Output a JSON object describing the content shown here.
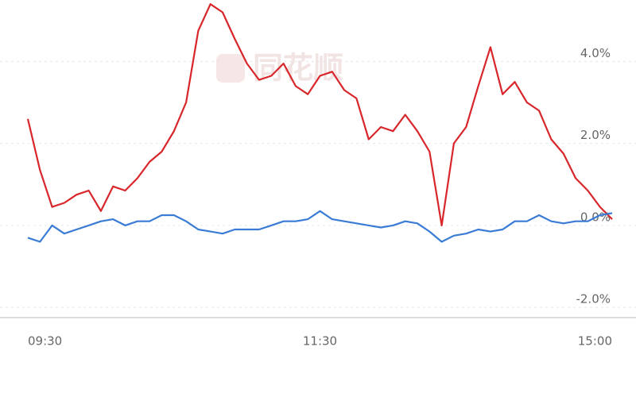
{
  "chart_data": {
    "type": "line",
    "watermark": "同花顺",
    "categories": [
      "09:30",
      null,
      null,
      null,
      null,
      null,
      null,
      null,
      null,
      null,
      null,
      null,
      null,
      null,
      null,
      null,
      null,
      null,
      null,
      null,
      null,
      null,
      null,
      null,
      "11:30",
      null,
      null,
      null,
      null,
      null,
      null,
      null,
      null,
      null,
      null,
      null,
      null,
      null,
      null,
      null,
      null,
      null,
      null,
      null,
      null,
      null,
      null,
      null,
      "15:00"
    ],
    "series": [
      {
        "color": "#d8262b",
        "values": [
          2.6,
          1.35,
          0.45,
          0.55,
          0.75,
          0.85,
          0.35,
          0.95,
          0.85,
          1.15,
          1.55,
          1.8,
          2.3,
          3.0,
          4.75,
          5.4,
          5.2,
          4.55,
          3.95,
          3.55,
          3.65,
          3.95,
          3.4,
          3.2,
          3.65,
          3.75,
          3.3,
          3.1,
          2.1,
          2.4,
          2.3,
          2.7,
          2.3,
          1.8,
          0.0,
          2.0,
          2.4,
          3.4,
          4.35,
          3.2,
          3.5,
          3.0,
          2.8,
          2.1,
          1.75,
          1.15,
          0.85,
          0.45,
          0.15
        ]
      },
      {
        "color": "#3a7bd5",
        "values": [
          -0.3,
          -0.4,
          0.0,
          -0.2,
          -0.1,
          0.0,
          0.1,
          0.15,
          0.0,
          0.1,
          0.1,
          0.25,
          0.25,
          0.1,
          -0.1,
          -0.15,
          -0.2,
          -0.1,
          -0.1,
          -0.1,
          0.0,
          0.1,
          0.1,
          0.15,
          0.35,
          0.15,
          0.1,
          0.05,
          0.0,
          -0.05,
          0.0,
          0.1,
          0.05,
          -0.15,
          -0.4,
          -0.25,
          -0.2,
          -0.1,
          -0.15,
          -0.1,
          0.1,
          0.1,
          0.25,
          0.1,
          0.05,
          0.1,
          0.1,
          0.25,
          0.3
        ]
      }
    ],
    "ylim": [
      -2.25,
      5.5
    ],
    "yticks": [
      {
        "value": 4,
        "label": "4.0%"
      },
      {
        "value": 2,
        "label": "2.0%"
      },
      {
        "value": 0,
        "label": "0.0%"
      },
      {
        "value": -2,
        "label": "-2.0%"
      }
    ],
    "grid": true
  }
}
